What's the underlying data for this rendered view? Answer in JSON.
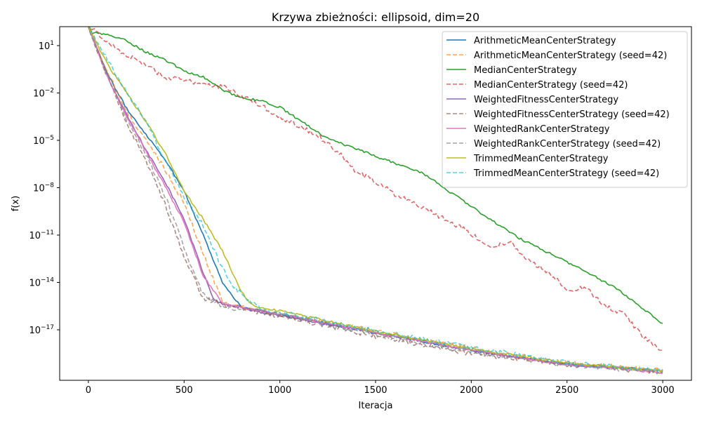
{
  "chart_data": {
    "type": "line",
    "title": "Krzywa zbieżności: ellipsoid, dim=20",
    "xlabel": "Iteracja",
    "ylabel": "f(x)",
    "xlim": [
      -150,
      3150
    ],
    "ylim_log10": [
      -20.2,
      2.2
    ],
    "yscale": "log",
    "grid": false,
    "legend_position": "upper right",
    "xticks": [
      {
        "value": 0,
        "label": "0"
      },
      {
        "value": 500,
        "label": "500"
      },
      {
        "value": 1000,
        "label": "1000"
      },
      {
        "value": 1500,
        "label": "1500"
      },
      {
        "value": 2000,
        "label": "2000"
      },
      {
        "value": 2500,
        "label": "2500"
      },
      {
        "value": 3000,
        "label": "3000"
      }
    ],
    "yticks": [
      {
        "value": 1,
        "base": "10",
        "exp": "1"
      },
      {
        "value": -2,
        "base": "10",
        "exp": "−2"
      },
      {
        "value": -5,
        "base": "10",
        "exp": "−5"
      },
      {
        "value": -8,
        "base": "10",
        "exp": "−8"
      },
      {
        "value": -11,
        "base": "10",
        "exp": "−11"
      },
      {
        "value": -14,
        "base": "10",
        "exp": "−14"
      },
      {
        "value": -17,
        "base": "10",
        "exp": "−17"
      }
    ],
    "series": [
      {
        "name": "ArithmeticMeanCenterStrategy",
        "color": "#1f77b4",
        "dash": "solid",
        "x": [
          0,
          100,
          200,
          300,
          400,
          500,
          600,
          700,
          800,
          900,
          1000,
          1500,
          2000,
          2500,
          3000
        ],
        "log10_y": [
          2.2,
          -0.8,
          -3.0,
          -4.6,
          -6.2,
          -8.2,
          -11.0,
          -14.0,
          -15.6,
          -15.8,
          -16.0,
          -17.2,
          -18.3,
          -19.2,
          -19.6
        ]
      },
      {
        "name": "ArithmeticMeanCenterStrategy (seed=42)",
        "color": "#ff7f0e",
        "dash": "dashed",
        "x": [
          0,
          100,
          200,
          300,
          400,
          500,
          600,
          700,
          800,
          900,
          1000,
          1500,
          2000,
          2500,
          3000
        ],
        "log10_y": [
          2.2,
          -0.7,
          -3.2,
          -5.0,
          -6.8,
          -9.0,
          -12.2,
          -15.2,
          -15.6,
          -15.8,
          -16.0,
          -17.1,
          -18.2,
          -19.1,
          -19.6
        ]
      },
      {
        "name": "MedianCenterStrategy",
        "color": "#2ca02c",
        "dash": "solid",
        "x": [
          0,
          20,
          100,
          200,
          300,
          400,
          500,
          600,
          700,
          800,
          900,
          1000,
          1250,
          1500,
          1750,
          2000,
          2250,
          2500,
          2750,
          3000
        ],
        "log10_y": [
          2.3,
          1.8,
          1.7,
          1.3,
          0.6,
          0.1,
          -0.6,
          -1.0,
          -1.8,
          -2.3,
          -2.5,
          -2.9,
          -4.9,
          -6.0,
          -7.1,
          -9.2,
          -11.2,
          -12.7,
          -14.3,
          -16.6
        ]
      },
      {
        "name": "MedianCenterStrategy (seed=42)",
        "color": "#d62728",
        "dash": "dashed",
        "x": [
          0,
          100,
          200,
          300,
          400,
          500,
          600,
          700,
          800,
          900,
          1000,
          1100,
          1200,
          1300,
          1400,
          1500,
          1600,
          1700,
          1800,
          1900,
          2000,
          2100,
          2200,
          2300,
          2400,
          2500,
          2600,
          2700,
          2800,
          2900,
          3000
        ],
        "log10_y": [
          2.3,
          1.2,
          0.4,
          -0.2,
          -1.0,
          -1.2,
          -1.4,
          -1.6,
          -2.2,
          -2.8,
          -3.5,
          -4.1,
          -4.7,
          -5.7,
          -7.0,
          -7.6,
          -8.4,
          -8.9,
          -9.6,
          -10.2,
          -10.9,
          -11.8,
          -11.4,
          -12.6,
          -13.4,
          -14.4,
          -14.4,
          -15.5,
          -16.0,
          -17.5,
          -18.4
        ]
      },
      {
        "name": "WeightedFitnessCenterStrategy",
        "color": "#9467bd",
        "dash": "solid",
        "x": [
          0,
          100,
          200,
          300,
          400,
          500,
          600,
          650,
          700,
          800,
          900,
          1000,
          1500,
          2000,
          2500,
          3000
        ],
        "log10_y": [
          2.2,
          -1.0,
          -3.4,
          -5.6,
          -7.6,
          -10.0,
          -13.4,
          -15.0,
          -15.4,
          -15.6,
          -15.9,
          -16.1,
          -17.2,
          -18.3,
          -19.2,
          -19.6
        ]
      },
      {
        "name": "WeightedFitnessCenterStrategy (seed=42)",
        "color": "#8c564b",
        "dash": "dashed",
        "x": [
          0,
          100,
          200,
          300,
          400,
          500,
          600,
          650,
          700,
          800,
          900,
          1000,
          1500,
          2000,
          2500,
          3000
        ],
        "log10_y": [
          2.2,
          -1.0,
          -3.9,
          -6.3,
          -9.0,
          -12.4,
          -15.0,
          -15.2,
          -15.4,
          -15.6,
          -15.9,
          -16.1,
          -17.4,
          -18.5,
          -19.2,
          -19.7
        ]
      },
      {
        "name": "WeightedRankCenterStrategy",
        "color": "#e377c2",
        "dash": "solid",
        "x": [
          0,
          100,
          200,
          300,
          400,
          500,
          600,
          700,
          800,
          900,
          1000,
          1500,
          2000,
          2500,
          3000
        ],
        "log10_y": [
          2.2,
          -1.0,
          -3.5,
          -5.7,
          -7.9,
          -10.2,
          -13.6,
          -15.3,
          -15.6,
          -15.8,
          -16.0,
          -17.2,
          -18.3,
          -19.2,
          -19.7
        ]
      },
      {
        "name": "WeightedRankCenterStrategy (seed=42)",
        "color": "#7f7f7f",
        "dash": "dashed",
        "x": [
          0,
          100,
          200,
          300,
          400,
          500,
          600,
          700,
          800,
          900,
          1000,
          1500,
          2000,
          2500,
          3000
        ],
        "log10_y": [
          2.2,
          -0.9,
          -3.6,
          -5.9,
          -8.5,
          -11.8,
          -14.8,
          -15.5,
          -15.7,
          -15.8,
          -16.0,
          -17.3,
          -18.4,
          -19.2,
          -19.7
        ]
      },
      {
        "name": "TrimmedMeanCenterStrategy",
        "color": "#bcbd22",
        "dash": "solid",
        "x": [
          0,
          100,
          200,
          300,
          400,
          500,
          600,
          700,
          800,
          850,
          900,
          1000,
          1500,
          2000,
          2500,
          3000
        ],
        "log10_y": [
          2.2,
          -0.2,
          -2.0,
          -3.8,
          -5.8,
          -8.2,
          -10.0,
          -12.0,
          -14.6,
          -15.4,
          -15.6,
          -15.8,
          -17.1,
          -18.2,
          -19.1,
          -19.6
        ]
      },
      {
        "name": "TrimmedMeanCenterStrategy (seed=42)",
        "color": "#17becf",
        "dash": "dashed",
        "x": [
          0,
          100,
          200,
          300,
          400,
          500,
          600,
          700,
          750,
          800,
          850,
          900,
          1000,
          1500,
          2000,
          2500,
          3000
        ],
        "log10_y": [
          2.2,
          0.1,
          -2.0,
          -3.8,
          -6.3,
          -8.6,
          -10.4,
          -13.1,
          -14.3,
          -14.7,
          -15.3,
          -15.7,
          -15.9,
          -17.1,
          -18.1,
          -19.1,
          -19.6
        ]
      }
    ]
  }
}
